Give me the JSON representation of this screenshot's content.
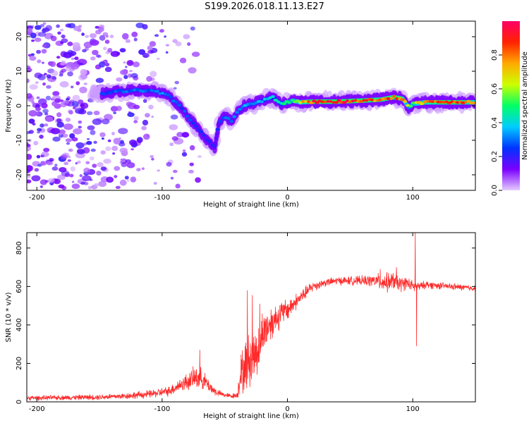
{
  "title": "S199.2026.018.11.13.E27",
  "chart_data": [
    {
      "type": "heatmap",
      "xlabel": "Height of straight line (km)",
      "ylabel": "Frequency (Hz)",
      "xlim": [
        -208,
        150
      ],
      "ylim": [
        -24.5,
        24.5
      ],
      "xticks": [
        -200,
        -100,
        0,
        100
      ],
      "yticks": [
        -20,
        -10,
        0,
        10,
        20
      ],
      "colorbar": {
        "label": "Normalized spectral amplitude",
        "range": [
          0.0,
          1.0
        ],
        "ticks": [
          "0.0",
          "0.2",
          "0.4",
          "0.6",
          "0.8"
        ],
        "tick_values": [
          0.0,
          0.2,
          0.4,
          0.6,
          0.8
        ],
        "colors": [
          "#e6ccff",
          "#7a00ff",
          "#0033ff",
          "#00ccff",
          "#00ff66",
          "#ccff00",
          "#ffaa00",
          "#ff2200",
          "#ff0066"
        ]
      },
      "ridge": {
        "name": "dominant frequency ridge",
        "x": [
          -148,
          -135,
          -120,
          -105,
          -95,
          -85,
          -75,
          -65,
          -58,
          -55,
          -50,
          -45,
          -40,
          -35,
          -28,
          -20,
          -12,
          -5,
          0,
          5,
          10,
          20,
          40,
          60,
          75,
          85,
          92,
          97,
          100,
          110,
          130,
          150
        ],
        "y": [
          3.5,
          4.2,
          4.5,
          4.2,
          3.0,
          -0.5,
          -5.0,
          -9.5,
          -12.0,
          -5.5,
          -3.0,
          -4.5,
          -2.0,
          0.0,
          0.5,
          1.5,
          2.5,
          0.5,
          1.0,
          1.5,
          1.0,
          1.2,
          1.2,
          1.5,
          1.8,
          2.5,
          2.0,
          -0.5,
          0.5,
          1.0,
          1.0,
          1.0
        ],
        "amplitude": [
          0.25,
          0.28,
          0.3,
          0.3,
          0.32,
          0.28,
          0.25,
          0.22,
          0.22,
          0.26,
          0.28,
          0.3,
          0.3,
          0.33,
          0.35,
          0.38,
          0.4,
          0.45,
          0.55,
          0.6,
          0.7,
          0.9,
          0.92,
          0.9,
          0.8,
          0.9,
          0.85,
          0.55,
          0.6,
          0.8,
          0.9,
          0.75
        ]
      },
      "noise": {
        "name": "low-amplitude background",
        "x_range": [
          -208,
          -100
        ],
        "y_range": [
          -24,
          24
        ],
        "amplitude_range": [
          0.02,
          0.2
        ]
      }
    },
    {
      "type": "line",
      "xlabel": "Height of straight line (km)",
      "ylabel": "SNR (10 * v/v)",
      "xlim": [
        -208,
        150
      ],
      "ylim": [
        0,
        880
      ],
      "xticks": [
        -200,
        -100,
        0,
        100
      ],
      "yticks": [
        0,
        200,
        400,
        600,
        800
      ],
      "series": [
        {
          "name": "SNR",
          "color": "#ff2a2a",
          "x": [
            -208,
            -180,
            -150,
            -130,
            -110,
            -95,
            -85,
            -78,
            -72,
            -68,
            -65,
            -62,
            -58,
            -55,
            -50,
            -45,
            -40,
            -38,
            -35,
            -32,
            -30,
            -28,
            -25,
            -22,
            -20,
            -15,
            -10,
            -5,
            0,
            5,
            10,
            15,
            20,
            30,
            40,
            60,
            70,
            75,
            80,
            85,
            90,
            95,
            100,
            102,
            104,
            106,
            110,
            130,
            150
          ],
          "y": [
            20,
            22,
            25,
            30,
            40,
            55,
            90,
            110,
            130,
            120,
            100,
            80,
            55,
            45,
            35,
            30,
            35,
            130,
            170,
            200,
            220,
            235,
            260,
            300,
            360,
            400,
            430,
            460,
            480,
            510,
            540,
            570,
            600,
            620,
            630,
            630,
            630,
            625,
            620,
            630,
            610,
            620,
            600,
            600,
            600,
            600,
            610,
            600,
            590
          ],
          "spread": [
            15,
            15,
            18,
            20,
            25,
            30,
            45,
            60,
            75,
            60,
            50,
            40,
            30,
            20,
            15,
            15,
            20,
            120,
            150,
            170,
            180,
            180,
            170,
            160,
            140,
            120,
            100,
            80,
            70,
            55,
            45,
            40,
            35,
            25,
            25,
            30,
            40,
            55,
            60,
            55,
            50,
            40,
            35,
            40,
            30,
            25,
            25,
            20,
            20
          ],
          "spikes": [
            {
              "x": -70,
              "y": 270
            },
            {
              "x": -32,
              "y": 580
            },
            {
              "x": -28,
              "y": 555
            },
            {
              "x": -22,
              "y": 510
            },
            {
              "x": 74,
              "y": 690
            },
            {
              "x": 87,
              "y": 700
            },
            {
              "x": 102,
              "y": 880
            },
            {
              "x": 103,
              "y": 290
            }
          ]
        }
      ]
    }
  ]
}
